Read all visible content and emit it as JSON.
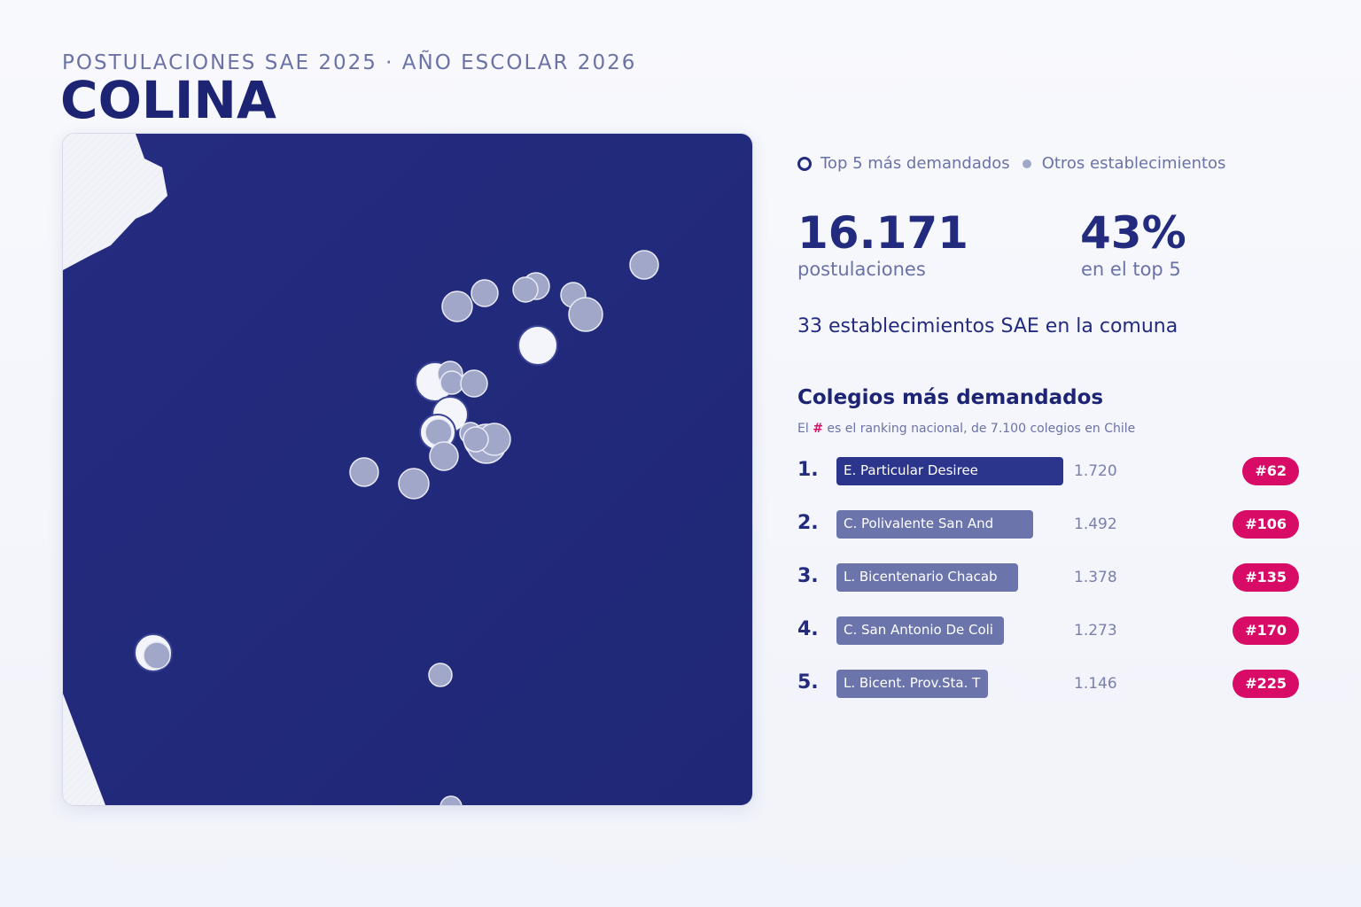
{
  "header": {
    "kicker": "POSTULACIONES SAE 2025 · AÑO ESCOLAR 2026",
    "commune": "COLINA"
  },
  "legend": {
    "top5_label": "Top 5 más demandados",
    "others_label": "Otros establecimientos"
  },
  "kpis": {
    "applications_value": "16.171",
    "applications_label": "postulaciones",
    "top5_share_value": "43%",
    "top5_share_label": "en el top 5"
  },
  "establishments_text": "33 establecimientos SAE en la comuna",
  "ranking": {
    "title": "Colegios más demandados",
    "note_prefix": "El",
    "note_hash": "#",
    "note_suffix": "es el ranking nacional, de 7.100 colegios en Chile",
    "max_applications": 1720,
    "items": [
      {
        "pos": "1.",
        "name": "E. Particular Desiree",
        "applications": 1720,
        "applications_label": "1.720",
        "national_rank": "#62"
      },
      {
        "pos": "2.",
        "name": "C. Polivalente San And",
        "applications": 1492,
        "applications_label": "1.492",
        "national_rank": "#106"
      },
      {
        "pos": "3.",
        "name": "L. Bicentenario Chacab",
        "applications": 1378,
        "applications_label": "1.378",
        "national_rank": "#135"
      },
      {
        "pos": "4.",
        "name": "C. San Antonio De Coli",
        "applications": 1273,
        "applications_label": "1.273",
        "national_rank": "#170"
      },
      {
        "pos": "5.",
        "name": "L. Bicent. Prov.Sta. T",
        "applications": 1146,
        "applications_label": "1.146",
        "national_rank": "#225"
      }
    ]
  },
  "colors": {
    "commune_fill": "#232b7e",
    "outside_fill": "#f3f4fa",
    "school_marker": "#a1a7c8",
    "top5_marker": "#f4f5fb",
    "badge": "#d80b66"
  }
}
